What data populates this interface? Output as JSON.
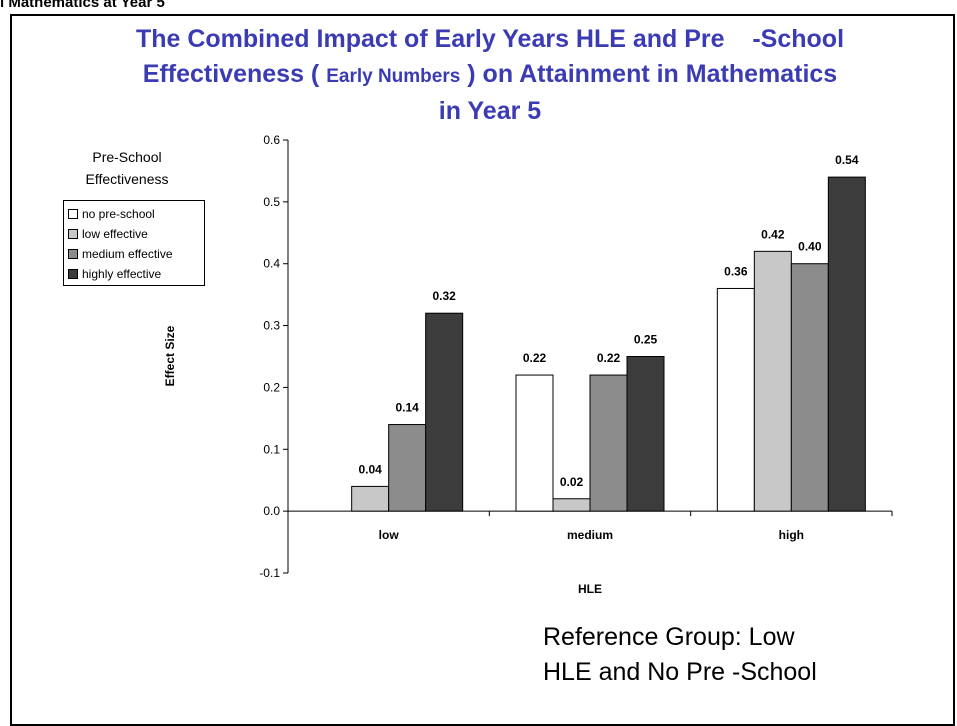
{
  "page": {
    "top_caption": "l Mathematics at Year 5",
    "reference_note": [
      "Reference Group: Low",
      "HLE and No Pre -School"
    ]
  },
  "chart_data": {
    "type": "bar",
    "title": "The Combined Impact of Early Years HLE and Pre -School Effectiveness ( Early Numbers ) on Attainment in Mathematics in Year 5",
    "title_lines": [
      [
        "The Combined Impact of Early Years HLE and Pre",
        "    -School"
      ],
      [
        "Effectiveness ( ",
        "Early Numbers",
        " ) on Attainment in Mathematics"
      ],
      [
        "in Year 5"
      ]
    ],
    "title_color": "#3b3bb3",
    "xlabel": "HLE",
    "ylabel": "Effect Size",
    "ylim": [
      -0.1,
      0.6
    ],
    "yticks": [
      "-0.1",
      "0.0",
      "0.1",
      "0.2",
      "0.3",
      "0.4",
      "0.5",
      "0.6"
    ],
    "categories": [
      "low",
      "medium",
      "high"
    ],
    "legend_title": [
      "Pre-School",
      "Effectiveness"
    ],
    "legend_position": "left",
    "grid": false,
    "series": [
      {
        "name": "no pre-school",
        "color": "#ffffff",
        "values": [
          null,
          0.22,
          0.36
        ],
        "labels": [
          null,
          "0.22",
          "0.36"
        ]
      },
      {
        "name": "low effective",
        "color": "#c8c8c8",
        "values": [
          0.04,
          0.02,
          0.42
        ],
        "labels": [
          "0.04",
          "0.02",
          "0.42"
        ]
      },
      {
        "name": "medium effective",
        "color": "#8c8c8c",
        "values": [
          0.14,
          0.22,
          0.4
        ],
        "labels": [
          "0.14",
          "0.22",
          "0.40"
        ]
      },
      {
        "name": "highly effective",
        "color": "#3c3c3c",
        "values": [
          0.32,
          0.25,
          0.54
        ],
        "labels": [
          "0.32",
          "0.25",
          "0.54"
        ]
      }
    ]
  }
}
